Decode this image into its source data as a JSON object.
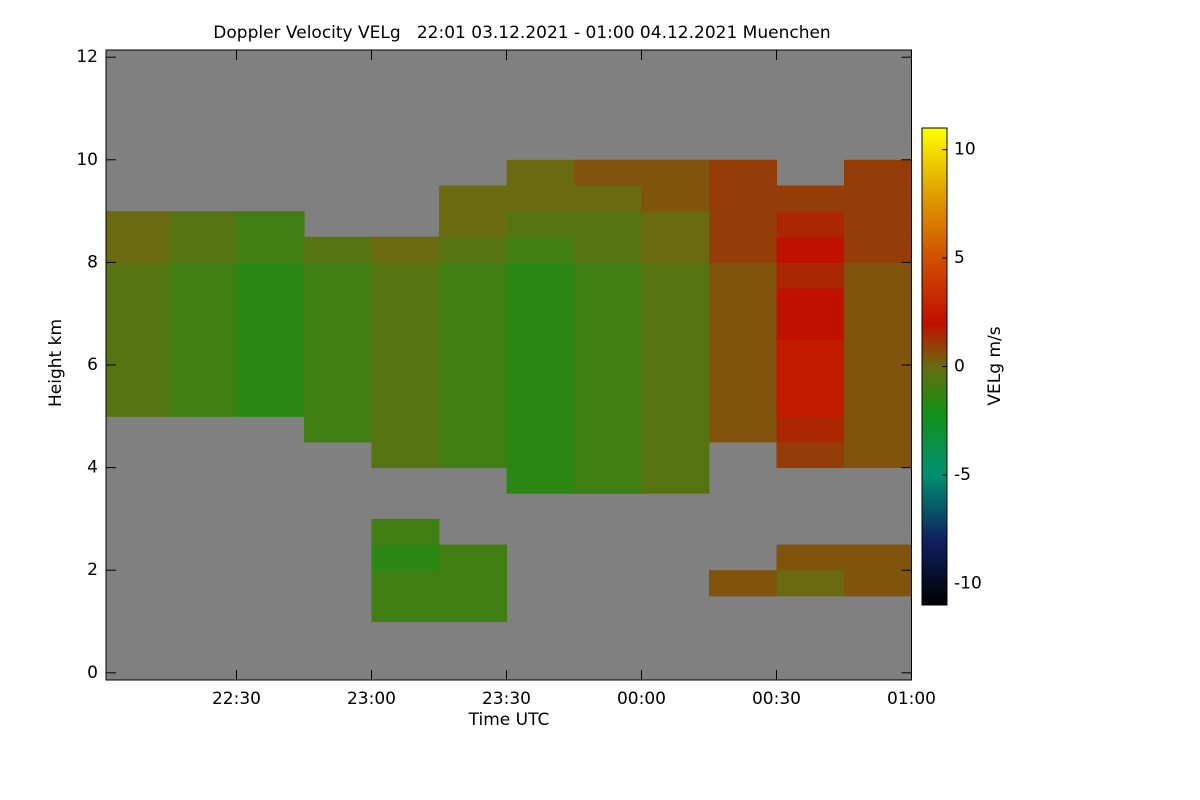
{
  "chart_data": {
    "type": "heatmap",
    "title": "Doppler Velocity VELg   22:01 03.12.2021 - 01:00 04.12.2021 Muenchen",
    "x_label": "Time UTC",
    "y_label": "Height km",
    "colorbar_label": "VELg m/s",
    "background_color": "#808080",
    "xlim": [
      22.0167,
      25.0
    ],
    "ylim": [
      -0.14,
      12.14
    ],
    "clim": [
      -11,
      11
    ],
    "xticks": [
      {
        "value": 22.5,
        "label": "22:30"
      },
      {
        "value": 23,
        "label": "23:00"
      },
      {
        "value": 23.5,
        "label": "23:30"
      },
      {
        "value": 24,
        "label": "00:00"
      },
      {
        "value": 24.5,
        "label": "00:30"
      },
      {
        "value": 25,
        "label": "01:00"
      }
    ],
    "yticks": [
      0,
      2,
      4,
      6,
      8,
      10,
      12
    ],
    "cticks": [
      -10,
      -5,
      0,
      5,
      10
    ],
    "colorscale": [
      [
        -11,
        "#000000"
      ],
      [
        -8,
        "#102060"
      ],
      [
        -5,
        "#009070"
      ],
      [
        -2,
        "#159015"
      ],
      [
        0,
        "#6a6a10"
      ],
      [
        2,
        "#c01000"
      ],
      [
        5,
        "#d05000"
      ],
      [
        8,
        "#e0a000"
      ],
      [
        11,
        "#ffff00"
      ]
    ],
    "x_bins": [
      22.0167,
      22.25,
      22.5,
      22.75,
      23,
      23.25,
      23.5,
      23.75,
      24,
      24.25,
      24.5,
      24.75,
      25
    ],
    "y_bins": [
      0,
      0.5,
      1,
      1.5,
      2,
      2.5,
      3,
      3.5,
      4,
      4.5,
      5,
      5.5,
      6,
      6.5,
      7,
      7.5,
      8,
      8.5,
      9,
      9.5,
      10,
      10.5,
      11,
      11.5,
      12
    ],
    "values": [
      [
        null,
        null,
        null,
        null,
        null,
        null,
        null,
        null,
        null,
        null,
        null,
        null
      ],
      [
        null,
        null,
        null,
        null,
        null,
        null,
        null,
        null,
        null,
        null,
        null,
        null
      ],
      [
        null,
        null,
        null,
        null,
        -1,
        -1,
        null,
        null,
        null,
        null,
        null,
        null
      ],
      [
        null,
        null,
        null,
        null,
        -1,
        -1,
        null,
        null,
        null,
        0.5,
        0,
        0.5
      ],
      [
        null,
        null,
        null,
        null,
        -1.5,
        -1,
        null,
        null,
        null,
        null,
        0.5,
        0.5
      ],
      [
        null,
        null,
        null,
        null,
        -1,
        null,
        null,
        null,
        null,
        null,
        null,
        null
      ],
      [
        null,
        null,
        null,
        null,
        null,
        null,
        null,
        null,
        null,
        null,
        null,
        null
      ],
      [
        null,
        null,
        null,
        null,
        null,
        null,
        -1.5,
        -1,
        -0.5,
        null,
        null,
        null
      ],
      [
        null,
        null,
        null,
        null,
        -0.5,
        -1,
        -1.5,
        -1,
        -0.5,
        null,
        1,
        0.5
      ],
      [
        null,
        null,
        null,
        -1,
        -0.5,
        -1,
        -1.5,
        -1,
        -0.5,
        0.5,
        1.5,
        0.5
      ],
      [
        -0.5,
        -1,
        -1.5,
        -1,
        -0.5,
        -1,
        -1.5,
        -1,
        -0.5,
        0.5,
        2.5,
        0.5
      ],
      [
        -0.5,
        -1,
        -1.5,
        -1,
        -0.5,
        -1,
        -1.5,
        -1,
        -0.5,
        0.5,
        2.5,
        0.5
      ],
      [
        -0.5,
        -1,
        -1.5,
        -1,
        -0.5,
        -1,
        -1.5,
        -1,
        -0.5,
        0.5,
        2.5,
        0.5
      ],
      [
        -0.5,
        -1,
        -1.5,
        -1,
        -0.5,
        -1,
        -1.5,
        -1,
        -0.5,
        0.5,
        2,
        0.5
      ],
      [
        -0.5,
        -1,
        -1.5,
        -1,
        -0.5,
        -1,
        -1.5,
        -1,
        -0.5,
        0.5,
        2,
        0.5
      ],
      [
        -0.5,
        -1,
        -1.5,
        -1,
        -0.5,
        -1,
        -1.5,
        -1,
        -0.5,
        0.5,
        1.5,
        0.5
      ],
      [
        0,
        -0.5,
        -1,
        -0.5,
        0,
        -0.5,
        -1,
        -0.5,
        0,
        1,
        2,
        1
      ],
      [
        0,
        -0.5,
        -1,
        null,
        null,
        0,
        -0.5,
        -0.5,
        0,
        1,
        1.5,
        1
      ],
      [
        null,
        null,
        null,
        null,
        null,
        0,
        0,
        0,
        0.5,
        1,
        1,
        1
      ],
      [
        null,
        null,
        null,
        null,
        null,
        null,
        0,
        0.5,
        0.5,
        1,
        null,
        1
      ],
      [
        null,
        null,
        null,
        null,
        null,
        null,
        null,
        null,
        null,
        null,
        null,
        null
      ],
      [
        null,
        null,
        null,
        null,
        null,
        null,
        null,
        null,
        null,
        null,
        null,
        null
      ],
      [
        null,
        null,
        null,
        null,
        null,
        null,
        null,
        null,
        null,
        null,
        null,
        null
      ],
      [
        null,
        null,
        null,
        null,
        null,
        null,
        null,
        null,
        null,
        null,
        null,
        null
      ]
    ]
  }
}
